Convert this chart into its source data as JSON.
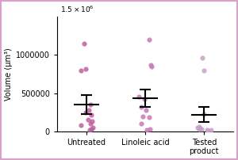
{
  "title": "",
  "ylabel": "Volume (μm³)",
  "ylim": [
    0,
    1500000
  ],
  "background_color": "#ffffff",
  "border_color": "#d9a0c8",
  "groups": [
    "Untreated",
    "Linoleic acid",
    "Tested\nproduct"
  ],
  "dot_colors": [
    "#c060a0",
    "#c878b8",
    "#c8a0c8"
  ],
  "untreated_points": [
    350000,
    250000,
    220000,
    280000,
    80000,
    50000,
    20000,
    100000,
    800000,
    820000,
    1150000,
    130000,
    150000,
    30000
  ],
  "linoleic_points": [
    420000,
    320000,
    280000,
    450000,
    30000,
    20000,
    180000,
    200000,
    850000,
    870000,
    1200000,
    100000
  ],
  "tested_points": [
    230000,
    50000,
    30000,
    20000,
    10000,
    15000,
    25000,
    960000,
    800000,
    40000,
    60000
  ],
  "untreated_mean": 350000,
  "untreated_sem": 120000,
  "linoleic_mean": 430000,
  "linoleic_sem": 115000,
  "tested_mean": 220000,
  "tested_sem": 100000,
  "error_capsize": 5,
  "dot_size": 20,
  "dot_alpha": 0.85,
  "jitter_seed": 42
}
